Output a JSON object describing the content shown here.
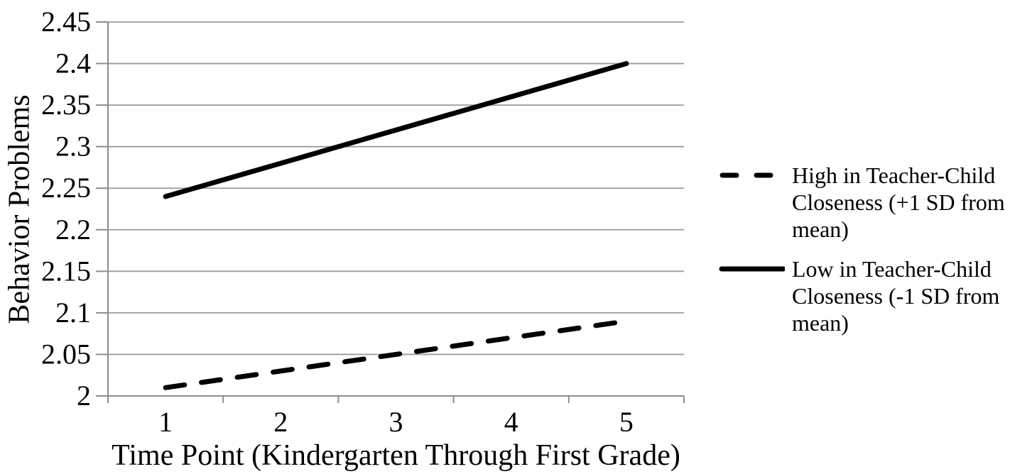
{
  "figure": {
    "background": "#ffffff"
  },
  "chart_data": {
    "type": "line",
    "title": "",
    "xlabel": "Time Point (Kindergarten Through First Grade)",
    "ylabel": "Behavior Problems",
    "categories": [
      "1",
      "2",
      "3",
      "4",
      "5"
    ],
    "ylim": [
      2,
      2.45
    ],
    "y_ticks": [
      "2",
      "2.05",
      "2.1",
      "2.15",
      "2.2",
      "2.25",
      "2.3",
      "2.35",
      "2.4",
      "2.45"
    ],
    "grid": true,
    "legend_position": "right",
    "colors": {
      "line": "#000000",
      "grid": "#9b9b9b",
      "axis": "#8c8c8c",
      "text": "#000000"
    },
    "series": [
      {
        "name": "High in Teacher-Child Closeness (+1 SD from mean)",
        "line_style": "dashed",
        "values": [
          2.01,
          2.03,
          2.05,
          2.07,
          2.09
        ]
      },
      {
        "name": "Low in Teacher-Child Closeness (-1 SD from mean)",
        "line_style": "solid",
        "values": [
          2.24,
          2.28,
          2.32,
          2.36,
          2.4
        ]
      }
    ]
  }
}
